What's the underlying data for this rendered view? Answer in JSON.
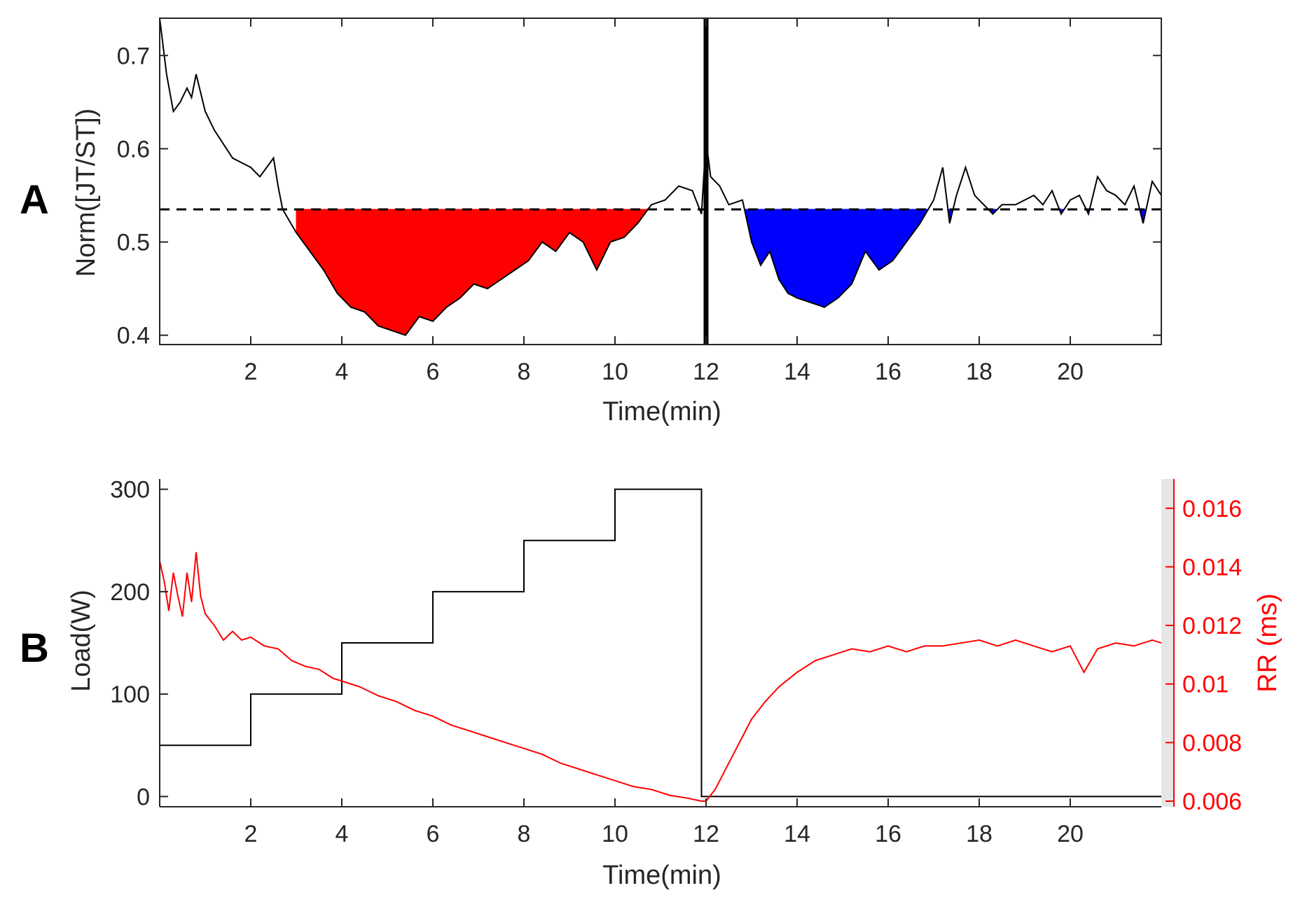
{
  "panels": {
    "a_label": "A",
    "b_label": "B"
  },
  "chart_data": [
    {
      "type": "line",
      "panel": "A",
      "xlabel": "Time(min)",
      "ylabel": "Norm([JT/ST])",
      "xlim": [
        0,
        22
      ],
      "ylim": [
        0.39,
        0.74
      ],
      "xticks": [
        2,
        4,
        6,
        8,
        10,
        12,
        14,
        16,
        18,
        20
      ],
      "yticks": [
        0.4,
        0.5,
        0.6,
        0.7
      ],
      "ytick_labels": [
        "0.4",
        "0.5",
        "0.6",
        "0.7"
      ],
      "threshold": 0.535,
      "vertical_marker_x": 12,
      "fill_below_threshold_colors": {
        "before_marker": "#ff0000",
        "after_marker": "#0000ff"
      },
      "series": [
        {
          "color": "#000000",
          "x": [
            0,
            0.15,
            0.3,
            0.45,
            0.6,
            0.7,
            0.8,
            0.9,
            1.0,
            1.2,
            1.4,
            1.6,
            1.8,
            2.0,
            2.2,
            2.35,
            2.5,
            2.6,
            2.7,
            3.0,
            3.3,
            3.6,
            3.9,
            4.2,
            4.5,
            4.8,
            5.1,
            5.4,
            5.7,
            6.0,
            6.3,
            6.6,
            6.9,
            7.2,
            7.5,
            7.8,
            8.1,
            8.4,
            8.7,
            9.0,
            9.3,
            9.6,
            9.9,
            10.2,
            10.5,
            10.8,
            11.1,
            11.4,
            11.7,
            11.9,
            12.0,
            12.1,
            12.3,
            12.5,
            12.8,
            13.0,
            13.2,
            13.4,
            13.6,
            13.8,
            14.0,
            14.3,
            14.6,
            14.9,
            15.2,
            15.5,
            15.8,
            16.1,
            16.4,
            16.7,
            17.0,
            17.2,
            17.35,
            17.5,
            17.7,
            17.9,
            18.1,
            18.3,
            18.5,
            18.8,
            19.0,
            19.2,
            19.4,
            19.6,
            19.8,
            20.0,
            20.2,
            20.4,
            20.6,
            20.8,
            21.0,
            21.2,
            21.4,
            21.6,
            21.8,
            22.0
          ],
          "y": [
            0.74,
            0.68,
            0.64,
            0.65,
            0.665,
            0.655,
            0.68,
            0.66,
            0.64,
            0.62,
            0.605,
            0.59,
            0.585,
            0.58,
            0.57,
            0.58,
            0.59,
            0.56,
            0.535,
            0.51,
            0.49,
            0.47,
            0.445,
            0.43,
            0.425,
            0.41,
            0.405,
            0.4,
            0.42,
            0.415,
            0.43,
            0.44,
            0.455,
            0.45,
            0.46,
            0.47,
            0.48,
            0.5,
            0.49,
            0.51,
            0.5,
            0.47,
            0.5,
            0.505,
            0.52,
            0.54,
            0.545,
            0.56,
            0.555,
            0.53,
            0.61,
            0.57,
            0.56,
            0.54,
            0.545,
            0.5,
            0.475,
            0.49,
            0.46,
            0.445,
            0.44,
            0.435,
            0.43,
            0.44,
            0.455,
            0.49,
            0.47,
            0.48,
            0.5,
            0.52,
            0.545,
            0.58,
            0.52,
            0.55,
            0.58,
            0.55,
            0.54,
            0.53,
            0.54,
            0.54,
            0.545,
            0.55,
            0.54,
            0.555,
            0.53,
            0.545,
            0.55,
            0.53,
            0.57,
            0.555,
            0.55,
            0.54,
            0.56,
            0.52,
            0.565,
            0.55
          ]
        }
      ]
    },
    {
      "type": "line",
      "panel": "B",
      "xlabel": "Time(min)",
      "ylabel": "Load(W)",
      "y2label": "RR (ms)",
      "xlim": [
        0,
        22
      ],
      "ylim": [
        -10,
        310
      ],
      "y2lim": [
        0.006,
        0.017
      ],
      "xticks": [
        2,
        4,
        6,
        8,
        10,
        12,
        14,
        16,
        18,
        20
      ],
      "yticks": [
        0,
        100,
        200,
        300
      ],
      "y2ticks": [
        0.006,
        0.008,
        0.01,
        0.012,
        0.014,
        0.016
      ],
      "y2tick_labels": [
        "0.006",
        "0.008",
        "0.01",
        "0.012",
        "0.014",
        "0.016"
      ],
      "series": [
        {
          "axis": "left",
          "color": "#000000",
          "x": [
            0,
            2,
            2,
            4,
            4,
            6,
            6,
            8,
            8,
            10,
            10,
            11.9,
            11.9,
            22
          ],
          "y": [
            50,
            50,
            100,
            100,
            150,
            150,
            200,
            200,
            250,
            250,
            300,
            300,
            0,
            0
          ]
        },
        {
          "axis": "right",
          "color": "#ff0000",
          "x": [
            0,
            0.1,
            0.2,
            0.3,
            0.4,
            0.5,
            0.6,
            0.7,
            0.8,
            0.9,
            1.0,
            1.2,
            1.4,
            1.6,
            1.8,
            2.0,
            2.3,
            2.6,
            2.9,
            3.2,
            3.5,
            3.8,
            4.0,
            4.4,
            4.8,
            5.2,
            5.6,
            6.0,
            6.4,
            6.8,
            7.2,
            7.6,
            8.0,
            8.4,
            8.8,
            9.2,
            9.6,
            10.0,
            10.4,
            10.8,
            11.2,
            11.6,
            11.9,
            12.0,
            12.2,
            12.4,
            12.6,
            12.8,
            13.0,
            13.3,
            13.6,
            14.0,
            14.4,
            14.8,
            15.2,
            15.6,
            16.0,
            16.4,
            16.8,
            17.2,
            17.6,
            18.0,
            18.4,
            18.8,
            19.2,
            19.6,
            20.0,
            20.3,
            20.6,
            21.0,
            21.4,
            21.8,
            22.0
          ],
          "y": [
            0.0142,
            0.0135,
            0.0125,
            0.0138,
            0.013,
            0.0123,
            0.0138,
            0.0128,
            0.0145,
            0.013,
            0.0124,
            0.012,
            0.0115,
            0.0118,
            0.0115,
            0.0116,
            0.0113,
            0.0112,
            0.0108,
            0.0106,
            0.0105,
            0.0102,
            0.0101,
            0.0099,
            0.0096,
            0.0094,
            0.0091,
            0.0089,
            0.0086,
            0.0084,
            0.0082,
            0.008,
            0.0078,
            0.0076,
            0.0073,
            0.0071,
            0.0069,
            0.0067,
            0.0065,
            0.0064,
            0.0062,
            0.0061,
            0.006,
            0.006,
            0.0064,
            0.007,
            0.0076,
            0.0082,
            0.0088,
            0.0094,
            0.0099,
            0.0104,
            0.0108,
            0.011,
            0.0112,
            0.0111,
            0.0113,
            0.0111,
            0.0113,
            0.0113,
            0.0114,
            0.0115,
            0.0113,
            0.0115,
            0.0113,
            0.0111,
            0.0113,
            0.0104,
            0.0112,
            0.0114,
            0.0113,
            0.0115,
            0.0114
          ]
        }
      ]
    }
  ]
}
